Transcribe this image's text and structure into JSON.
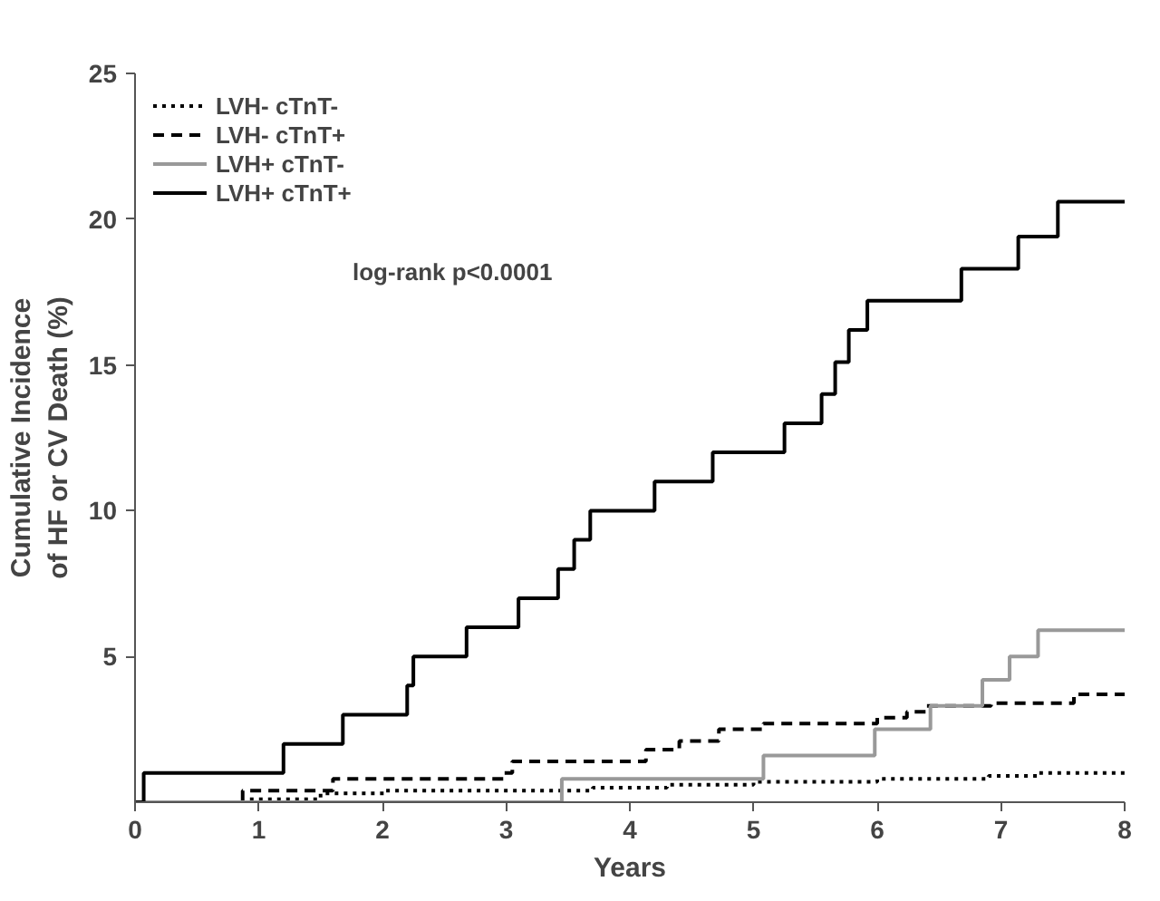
{
  "chart_data": {
    "type": "step",
    "xlabel": "Years",
    "ylabel": "Cumulative Incidence\nof HF or CV Death (%)",
    "xlim": [
      0,
      8
    ],
    "ylim": [
      0,
      25
    ],
    "xticks": [
      0,
      1,
      2,
      3,
      4,
      5,
      6,
      7,
      8
    ],
    "yticks": [
      5,
      10,
      15,
      20,
      25
    ],
    "grid": false,
    "legend": "top left",
    "annotations": [
      "log-rank p<0.0001"
    ],
    "series": [
      {
        "name": "LVH- cTnT-",
        "color": "#000000",
        "line_style": "dotted",
        "x": [
          0,
          0.9,
          1.5,
          2.03,
          3.7,
          4.3,
          5.0,
          6.0,
          6.9,
          7.3,
          8
        ],
        "values": [
          0,
          0.1,
          0.3,
          0.4,
          0.5,
          0.6,
          0.7,
          0.8,
          0.9,
          1.0,
          1.0
        ]
      },
      {
        "name": "LVH- cTnT+",
        "color": "#000000",
        "line_style": "dashed",
        "x": [
          0,
          0.87,
          1.6,
          2.98,
          3.05,
          4.13,
          4.4,
          4.72,
          5.08,
          6.0,
          6.24,
          6.4,
          6.92,
          7.59,
          8
        ],
        "values": [
          0,
          0.4,
          0.8,
          1.0,
          1.4,
          1.8,
          2.1,
          2.5,
          2.7,
          2.9,
          3.1,
          3.3,
          3.4,
          3.7,
          3.8
        ]
      },
      {
        "name": "LVH+ cTnT-",
        "color": "#999999",
        "line_style": "solid",
        "x": [
          0,
          3.45,
          5.08,
          5.98,
          6.43,
          6.85,
          7.07,
          7.3,
          8
        ],
        "values": [
          0,
          0.8,
          1.6,
          2.5,
          3.3,
          4.2,
          5.0,
          5.9,
          5.9
        ]
      },
      {
        "name": "LVH+ cTnT+",
        "color": "#000000",
        "line_style": "solid",
        "x": [
          0,
          0.07,
          1.2,
          1.68,
          2.2,
          2.25,
          2.68,
          3.1,
          3.42,
          3.55,
          3.68,
          4.2,
          4.67,
          5.25,
          5.55,
          5.66,
          5.77,
          5.92,
          6.68,
          7.14,
          7.46,
          8
        ],
        "values": [
          0,
          1,
          2,
          3,
          4,
          5,
          6,
          7,
          8,
          9,
          10,
          11,
          12,
          13,
          14,
          15.1,
          16.2,
          17.2,
          18.3,
          19.4,
          20.6,
          20.6
        ]
      }
    ]
  }
}
